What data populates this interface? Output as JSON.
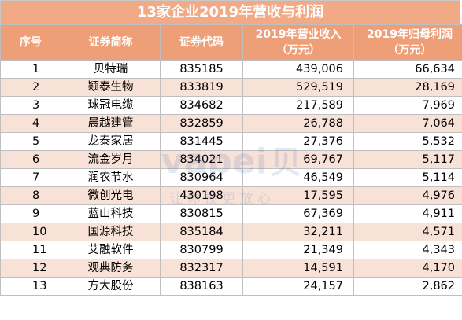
{
  "table": {
    "title": "13家企业2019年营收与利润",
    "headers": [
      "序号",
      "证券简称",
      "证券代码",
      "2019年营业收入",
      "2019年归母利润"
    ],
    "units": [
      "",
      "",
      "",
      "（万元）",
      "（万元）"
    ],
    "rows": [
      [
        "1",
        "贝特瑞",
        "835185",
        "439,006",
        "66,634"
      ],
      [
        "2",
        "颖泰生物",
        "833819",
        "529,519",
        "28,169"
      ],
      [
        "3",
        "球冠电缆",
        "834682",
        "217,589",
        "7,969"
      ],
      [
        "4",
        "晨越建管",
        "832859",
        "26,788",
        "7,064"
      ],
      [
        "5",
        "龙泰家居",
        "831445",
        "27,376",
        "5,532"
      ],
      [
        "6",
        "流金岁月",
        "834021",
        "69,767",
        "5,117"
      ],
      [
        "7",
        "润农节水",
        "830964",
        "46,549",
        "5,114"
      ],
      [
        "8",
        "微创光电",
        "430198",
        "17,595",
        "4,976"
      ],
      [
        "9",
        "蓝山科技",
        "830815",
        "67,369",
        "4,911"
      ],
      [
        "10",
        "国源科技",
        "835184",
        "32,211",
        "4,571"
      ],
      [
        "11",
        "艾融软件",
        "830799",
        "21,349",
        "4,343"
      ],
      [
        "12",
        "观典防务",
        "832317",
        "14,591",
        "4,170"
      ],
      [
        "13",
        "方大股份",
        "838163",
        "24,157",
        "2,862"
      ]
    ]
  },
  "chart_data": {
    "type": "table",
    "title": "13家企业2019年营收与利润",
    "columns": [
      "序号",
      "证券简称",
      "证券代码",
      "2019年营业收入（万元）",
      "2019年归母利润（万元）"
    ],
    "rows": [
      [
        1,
        "贝特瑞",
        "835185",
        439006,
        66634
      ],
      [
        2,
        "颖泰生物",
        "833819",
        529519,
        28169
      ],
      [
        3,
        "球冠电缆",
        "834682",
        217589,
        7969
      ],
      [
        4,
        "晨越建管",
        "832859",
        26788,
        7064
      ],
      [
        5,
        "龙泰家居",
        "831445",
        27376,
        5532
      ],
      [
        6,
        "流金岁月",
        "834021",
        69767,
        5117
      ],
      [
        7,
        "润农节水",
        "830964",
        46549,
        5114
      ],
      [
        8,
        "微创光电",
        "430198",
        17595,
        4976
      ],
      [
        9,
        "蓝山科技",
        "830815",
        67369,
        4911
      ],
      [
        10,
        "国源科技",
        "835184",
        32211,
        4571
      ],
      [
        11,
        "艾融软件",
        "830799",
        21349,
        4343
      ],
      [
        12,
        "观典防务",
        "832317",
        14591,
        4170
      ],
      [
        13,
        "方大股份",
        "838163",
        24157,
        2862
      ]
    ]
  },
  "watermark": {
    "brand": "vapei",
    "brand_cn": "贝",
    "slogan": "让 你 投 更 放 心"
  },
  "colors": {
    "title_bg": "#f2aa86",
    "header_bg": "#ef9f78",
    "row_alt_bg": "#f8e1d6",
    "watermark": "#2a5aa8"
  }
}
